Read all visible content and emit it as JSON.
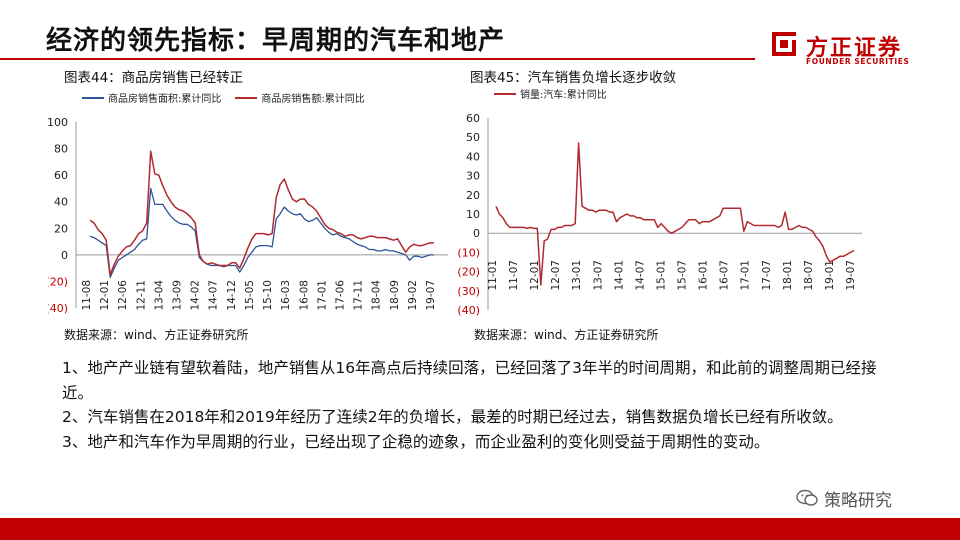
{
  "page": {
    "title": "经济的领先指标：早周期的汽车和地产",
    "logo_cn": "方正证券",
    "logo_en": "FOUNDER SECURITIES",
    "accent_color": "#c00000",
    "watermark": "策略研究",
    "watermark_icon": "wechat-icon"
  },
  "body": [
    "1、地产产业链有望软着陆，地产销售从16年高点后持续回落，已经回落了3年半的时间周期，和此前的调整周期已经接近。",
    "2、汽车销售在2018年和2019年经历了连续2年的负增长，最差的时期已经过去，销售数据负增长已经有所收敛。",
    "3、地产和汽车作为早周期的行业，已经出现了企稳的迹象，而企业盈利的变化则受益于周期性的变动。"
  ],
  "chart_data": [
    {
      "type": "line",
      "title": "图表44：商品房销售已经转正",
      "source": "数据来源：wind、方正证券研究所",
      "y_tick_labels": [
        "100",
        "80",
        "60",
        "40",
        "20",
        "0",
        "(20)",
        "(40)"
      ],
      "y_tick_values": [
        100,
        80,
        60,
        40,
        20,
        0,
        -20,
        -40
      ],
      "ylim": [
        -40,
        100
      ],
      "x_tick_labels": [
        "11-08",
        "12-01",
        "12-06",
        "12-11",
        "13-04",
        "13-09",
        "14-02",
        "14-07",
        "14-12",
        "15-05",
        "15-10",
        "16-03",
        "16-08",
        "17-01",
        "17-06",
        "17-11",
        "18-04",
        "18-09",
        "19-02",
        "19-07"
      ],
      "grid": false,
      "legend_position": "top",
      "series": [
        {
          "name": "商品房销售面积:累计同比",
          "color": "#2f5597",
          "values": [
            14,
            13,
            11,
            9,
            7,
            -17,
            -10,
            -4,
            -2,
            0,
            2,
            4,
            8,
            11,
            12,
            50,
            38,
            38,
            38,
            33,
            29,
            26,
            24,
            23,
            23,
            21,
            18,
            -2,
            -5,
            -7,
            -8,
            -8,
            -8,
            -9,
            -8,
            -8,
            -8,
            -13,
            -8,
            -2,
            2,
            6,
            7,
            7,
            7,
            6,
            27,
            31,
            36,
            33,
            31,
            30,
            31,
            27,
            25,
            26,
            28,
            24,
            20,
            17,
            15,
            16,
            14,
            13,
            12,
            10,
            8,
            7,
            6,
            4,
            4,
            3,
            3,
            4,
            3,
            3,
            2,
            1,
            0,
            -4,
            -1,
            -1,
            -2,
            -1,
            0,
            0
          ],
          "value_labels": [],
          "line_width": 1.3
        },
        {
          "name": "商品房销售额:累计同比",
          "color": "#b02a30",
          "values": [
            26,
            24,
            19,
            16,
            11,
            -15,
            -7,
            -1,
            3,
            6,
            7,
            11,
            16,
            18,
            24,
            78,
            61,
            60,
            52,
            45,
            40,
            36,
            34,
            33,
            31,
            28,
            24,
            0,
            -5,
            -7,
            -6,
            -7,
            -8,
            -8,
            -8,
            -6,
            -6,
            -10,
            -3,
            5,
            12,
            16,
            16,
            16,
            15,
            16,
            43,
            53,
            57,
            49,
            42,
            40,
            42,
            42,
            38,
            36,
            33,
            28,
            23,
            20,
            19,
            17,
            16,
            14,
            15,
            15,
            13,
            12,
            13,
            14,
            14,
            13,
            13,
            13,
            12,
            11,
            12,
            7,
            2,
            6,
            8,
            7,
            7,
            8,
            9,
            9
          ],
          "value_labels": [],
          "line_width": 1.5
        }
      ]
    },
    {
      "type": "line",
      "title": "图表45：汽车销售负增长逐步收敛",
      "source": "数据来源：wind、方正证券研究所",
      "y_tick_labels": [
        "60",
        "50",
        "40",
        "30",
        "20",
        "10",
        "0",
        "(10)",
        "(20)",
        "(30)",
        "(40)"
      ],
      "y_tick_values": [
        60,
        50,
        40,
        30,
        20,
        10,
        0,
        -10,
        -20,
        -30,
        -40
      ],
      "ylim": [
        -40,
        60
      ],
      "x_tick_labels": [
        "11-01",
        "11-07",
        "12-01",
        "12-07",
        "13-01",
        "13-07",
        "14-01",
        "14-07",
        "15-01",
        "15-07",
        "16-01",
        "16-07",
        "17-01",
        "17-07",
        "18-01",
        "18-07",
        "19-01",
        "19-07"
      ],
      "grid": false,
      "legend_position": "top",
      "series": [
        {
          "name": "销量:汽车:累计同比",
          "color": "#b02a30",
          "values": [
            14,
            10,
            8,
            5,
            3,
            3,
            3,
            3,
            3,
            2.5,
            3,
            2.5,
            2.5,
            -27,
            -4,
            -3,
            2,
            2,
            3,
            3,
            4,
            4,
            4,
            5,
            47,
            14,
            13,
            12,
            12,
            11,
            12,
            12,
            12,
            11,
            11,
            6,
            8,
            9,
            10,
            9,
            9,
            8,
            8,
            7,
            7,
            7,
            7,
            3,
            5,
            3,
            1,
            0,
            1,
            2,
            3,
            5,
            7,
            7,
            7,
            5,
            6,
            6,
            6,
            7,
            8,
            9,
            13,
            13,
            13,
            13,
            13,
            13,
            1,
            6,
            5,
            4,
            4,
            4,
            4,
            4,
            4,
            4,
            3,
            4,
            11,
            2,
            2,
            3,
            4,
            3,
            3,
            2,
            1,
            -2,
            -4,
            -7,
            -12,
            -15,
            -14,
            -13,
            -12,
            -12,
            -11,
            -10,
            -9
          ],
          "value_labels": [],
          "line_width": 1.5
        }
      ]
    }
  ]
}
